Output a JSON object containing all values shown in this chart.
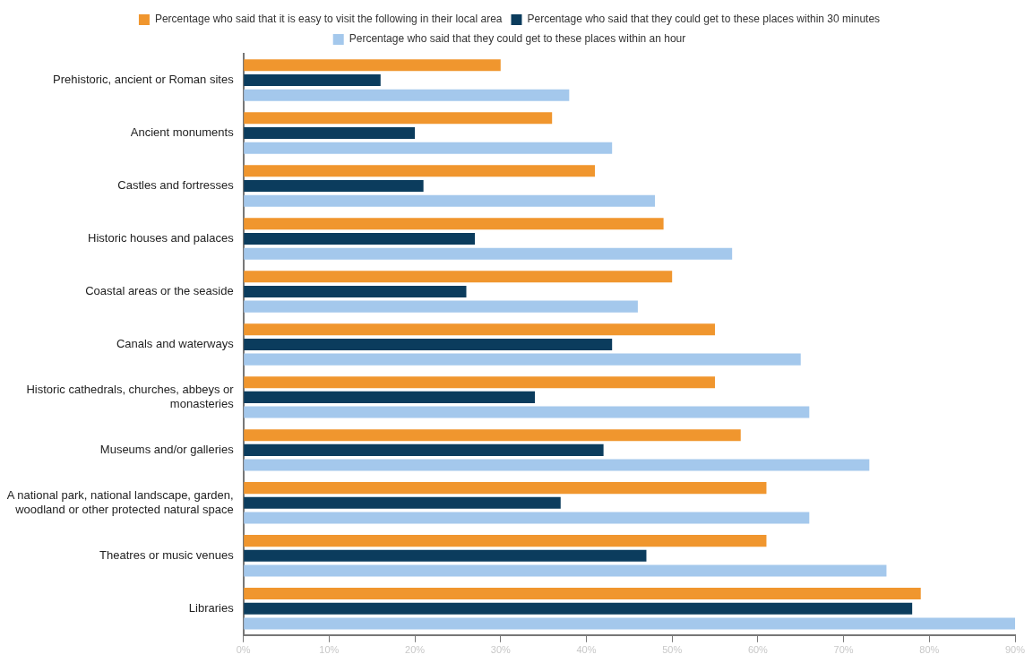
{
  "chart_data": {
    "type": "bar",
    "orientation": "horizontal",
    "categories": [
      "Prehistoric, ancient or Roman sites",
      "Ancient monuments",
      "Castles and fortresses",
      "Historic houses and palaces",
      "Coastal areas or the seaside",
      "Canals and waterways",
      "Historic cathedrals, churches, abbeys or monasteries",
      "Museums and/or galleries",
      "A national park, national landscape, garden, woodland or other protected natural space",
      "Theatres or music venues",
      "Libraries"
    ],
    "series": [
      {
        "name": "Percentage who said that it is easy to visit the following in their local area",
        "color": "#f0962e",
        "values": [
          30,
          36,
          41,
          49,
          50,
          55,
          55,
          58,
          61,
          61,
          79
        ]
      },
      {
        "name": "Percentage who said that they could get to these places within 30 minutes",
        "color": "#0b3c5d",
        "values": [
          16,
          20,
          21,
          27,
          26,
          43,
          34,
          42,
          37,
          47,
          78
        ]
      },
      {
        "name": "Percentage who said that they could get to these places within an hour",
        "color": "#a4c8ec",
        "values": [
          38,
          43,
          48,
          57,
          46,
          65,
          66,
          73,
          66,
          75,
          90
        ]
      }
    ],
    "xlim": [
      0,
      90
    ],
    "xticks": [
      {
        "value": 0,
        "label": "0%"
      },
      {
        "value": 10,
        "label": "10%"
      },
      {
        "value": 20,
        "label": "20%"
      },
      {
        "value": 30,
        "label": "30%"
      },
      {
        "value": 40,
        "label": "40%"
      },
      {
        "value": 50,
        "label": "50%"
      },
      {
        "value": 60,
        "label": "60%"
      },
      {
        "value": 70,
        "label": "70%"
      },
      {
        "value": 80,
        "label": "80%"
      },
      {
        "value": 90,
        "label": "90%"
      }
    ],
    "legend": "top"
  }
}
